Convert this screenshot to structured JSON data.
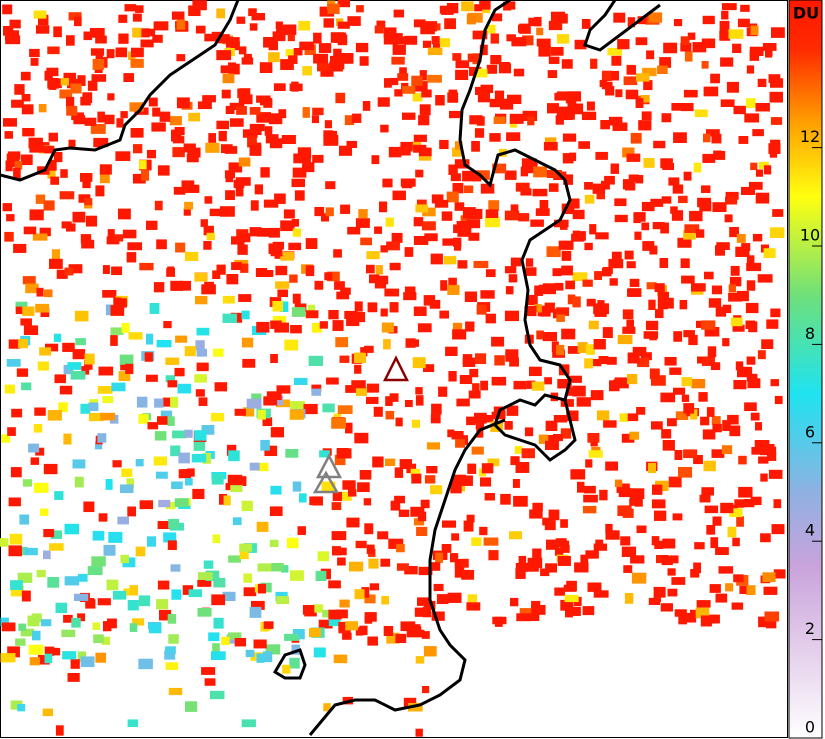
{
  "colorbar": {
    "title": "DU",
    "vlim": [
      0,
      15
    ],
    "ticks": [
      0,
      2,
      4,
      6,
      8,
      10,
      12
    ],
    "colors": [
      "#ffffff",
      "#e8d6ee",
      "#c9a3dc",
      "#8fb1e2",
      "#1fe3f0",
      "#6fe07a",
      "#ffff10",
      "#ffa000",
      "#ff2a00",
      "#ff1800"
    ],
    "stops": [
      0,
      1.5,
      3.5,
      5,
      7,
      9,
      11,
      12.5,
      14,
      15
    ]
  }
}
